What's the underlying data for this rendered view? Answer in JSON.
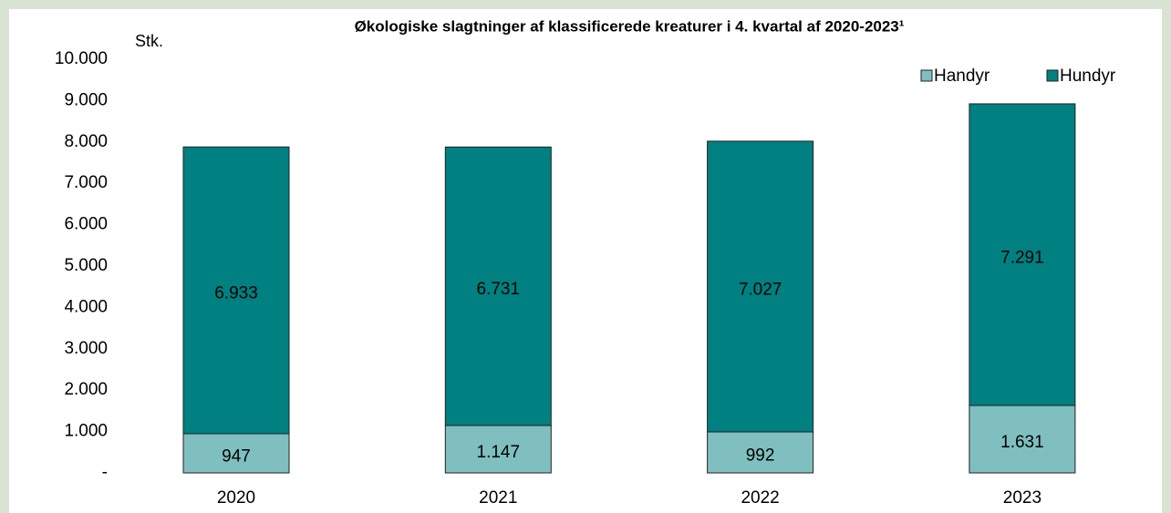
{
  "chart_data": {
    "type": "stacked_bar",
    "title": "Økologiske slagtninger af klassificerede kreaturer i 4. kvartal af 2020-2023¹",
    "y_label": "Stk.",
    "categories": [
      "2020",
      "2021",
      "2022",
      "2023"
    ],
    "series": [
      {
        "name": "Handyr",
        "color": "#7fbfbf",
        "values": [
          947,
          1147,
          992,
          1631
        ],
        "value_labels": [
          "947",
          "1.147",
          "992",
          "1.631"
        ]
      },
      {
        "name": "Hundyr",
        "color": "#008080",
        "values": [
          6933,
          6731,
          7027,
          7291
        ],
        "value_labels": [
          "6.933",
          "6.731",
          "7.027",
          "7.291"
        ]
      }
    ],
    "ylim": [
      0,
      10000
    ],
    "yticks": [
      {
        "value": 0,
        "label": "-"
      },
      {
        "value": 1000,
        "label": "1.000"
      },
      {
        "value": 2000,
        "label": "2.000"
      },
      {
        "value": 3000,
        "label": "3.000"
      },
      {
        "value": 4000,
        "label": "4.000"
      },
      {
        "value": 5000,
        "label": "5.000"
      },
      {
        "value": 6000,
        "label": "6.000"
      },
      {
        "value": 7000,
        "label": "7.000"
      },
      {
        "value": 8000,
        "label": "8.000"
      },
      {
        "value": 9000,
        "label": "9.000"
      },
      {
        "value": 10000,
        "label": "10.000"
      }
    ],
    "grid": false,
    "legend": "top-right"
  }
}
